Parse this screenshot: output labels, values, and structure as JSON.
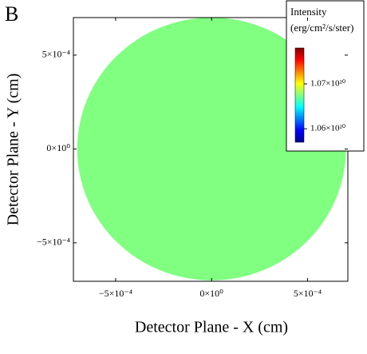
{
  "chart_data": {
    "type": "image",
    "panel_label": "B",
    "x_label": "Detector Plane - X (cm)",
    "y_label": "Detector Plane - Y (cm)",
    "xlim": [
      -0.00072,
      0.00071
    ],
    "ylim": [
      -0.000705,
      0.0007
    ],
    "xticks": [
      {
        "value": -0.0005,
        "label": "−5×10⁻⁴"
      },
      {
        "value": 0,
        "label": "0×10⁰"
      },
      {
        "value": 0.0005,
        "label": "5×10⁻⁴"
      }
    ],
    "yticks": [
      {
        "value": -0.0005,
        "label": "−5×10⁻⁴"
      },
      {
        "value": 0,
        "label": "0×10⁰"
      },
      {
        "value": 0.0005,
        "label": "5×10⁻⁴"
      }
    ],
    "disk": {
      "center": [
        0,
        0
      ],
      "radius": 0.0007,
      "intensity": 1.0675e+20
    },
    "colorbar": {
      "title": "Intensity",
      "units": "(erg/cm²/s/ster)",
      "colormap": "jet",
      "lim": [
        1.057e+20,
        1.078e+20
      ],
      "ticks": [
        {
          "value": 1.06e+20,
          "label": "1.06×10²⁰"
        },
        {
          "value": 1.07e+20,
          "label": "1.07×10²⁰"
        }
      ]
    }
  }
}
